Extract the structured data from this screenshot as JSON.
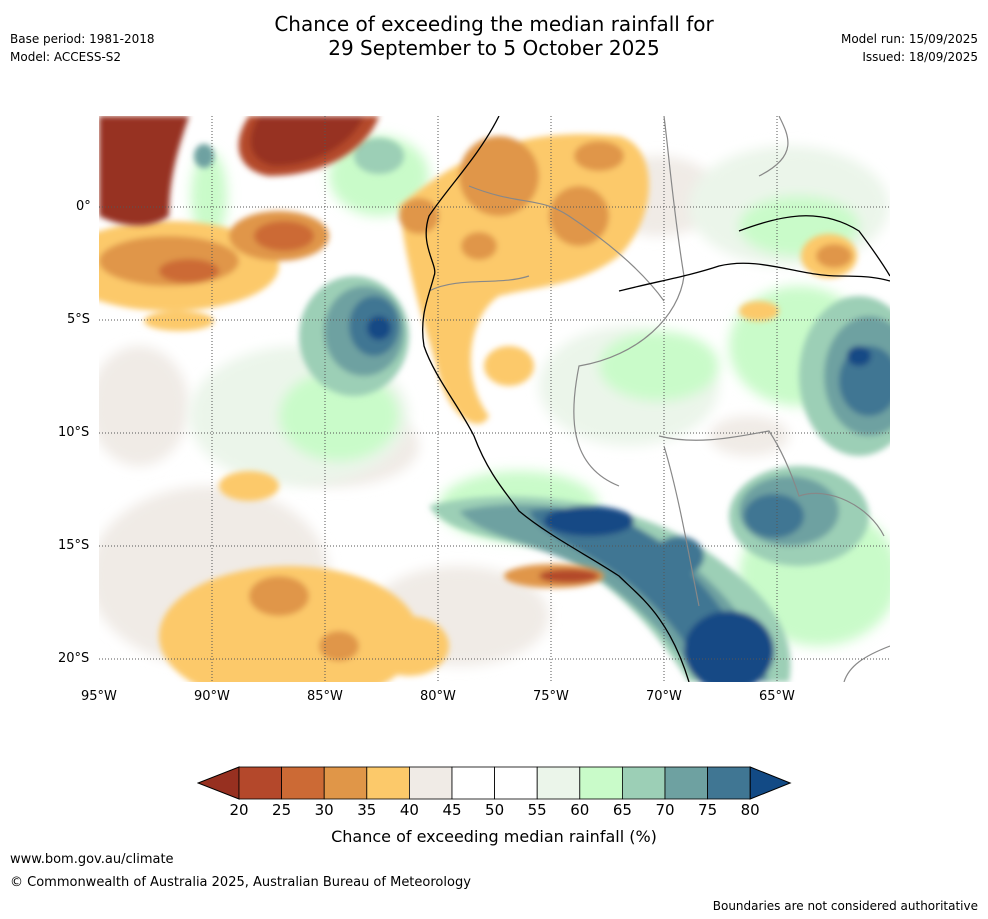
{
  "header": {
    "base_period": "Base period: 1981-2018",
    "model": "Model: ACCESS-S2",
    "title_line1": "Chance of exceeding the median rainfall for",
    "title_line2": "29 September to 5 October 2025",
    "model_run": "Model run: 15/09/2025",
    "issued": "Issued: 18/09/2025"
  },
  "map": {
    "lat_labels": [
      "0°",
      "5°S",
      "10°S",
      "15°S",
      "20°S"
    ],
    "lon_labels": [
      "95°W",
      "90°W",
      "85°W",
      "80°W",
      "75°W",
      "70°W",
      "65°W"
    ]
  },
  "colorbar": {
    "ticks": [
      "20",
      "25",
      "30",
      "35",
      "40",
      "45",
      "50",
      "55",
      "60",
      "65",
      "70",
      "75",
      "80"
    ],
    "colors": [
      "#973020",
      "#b4482b",
      "#cc6a35",
      "#e09648",
      "#fcc96a",
      "#f0ebe6",
      "#ffffff",
      "#ffffff",
      "#ebf5ea",
      "#c9fbc9",
      "#9ccfb6",
      "#6ea1a1",
      "#407693",
      "#124a85"
    ],
    "label": "Chance of exceeding median rainfall (%)"
  },
  "footer": {
    "url": "www.bom.gov.au/climate",
    "copyright": "© Commonwealth of Australia 2025, Australian Bureau of Meteorology",
    "disclaimer": "Boundaries are not considered authoritative"
  }
}
